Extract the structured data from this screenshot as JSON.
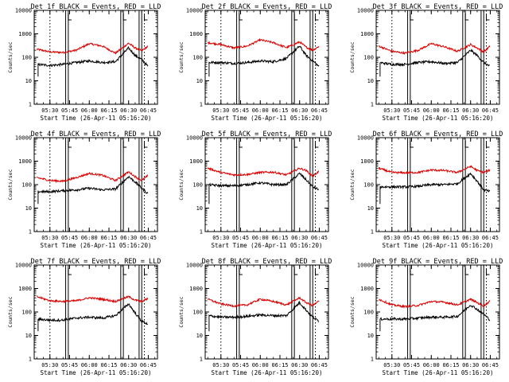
{
  "chart_data": {
    "type": "line",
    "layout": "3x3 grid",
    "y_scale": "log",
    "ylim": [
      1,
      10000
    ],
    "ytick_labels": [
      "1",
      "10",
      "100",
      "1000",
      "10000"
    ],
    "ylabel": "Counts/sec",
    "xlabel": "Start Time (26-Apr-11 05:16:20)",
    "xlim": [
      "05:18",
      "06:52"
    ],
    "xtick_labels": [
      "05:30",
      "05:45",
      "06:00",
      "06:15",
      "06:30",
      "06:45"
    ],
    "marker_lines": {
      "dotted": [
        "05:30",
        "06:42"
      ],
      "solid": [
        "05:42",
        "05:44",
        "06:24",
        "06:26",
        "06:38",
        "06:40"
      ]
    },
    "series_colors": {
      "events": "#000000",
      "lld": "#dd0000"
    },
    "x": [
      "05:20",
      "05:30",
      "05:40",
      "05:50",
      "06:00",
      "06:10",
      "06:20",
      "06:30",
      "06:35",
      "06:40",
      "06:45"
    ],
    "panels": [
      {
        "title": "Det 1f BLACK = Events, RED = LLD",
        "lld": [
          220,
          170,
          160,
          200,
          380,
          300,
          150,
          400,
          250,
          190,
          300
        ],
        "events": [
          50,
          45,
          50,
          60,
          70,
          60,
          65,
          250,
          120,
          80,
          40
        ]
      },
      {
        "title": "Det 2f BLACK = Events, RED = LLD",
        "lld": [
          420,
          350,
          250,
          300,
          550,
          420,
          260,
          450,
          270,
          200,
          300
        ],
        "events": [
          60,
          60,
          55,
          60,
          70,
          65,
          90,
          300,
          120,
          70,
          40
        ]
      },
      {
        "title": "Det 3f BLACK = Events, RED = LLD",
        "lld": [
          300,
          180,
          150,
          200,
          380,
          280,
          180,
          350,
          250,
          170,
          300
        ],
        "events": [
          60,
          50,
          50,
          60,
          65,
          55,
          60,
          200,
          120,
          60,
          40
        ]
      },
      {
        "title": "Det 4f BLACK = Events, RED = LLD",
        "lld": [
          200,
          150,
          140,
          200,
          300,
          250,
          150,
          350,
          220,
          150,
          250
        ],
        "events": [
          50,
          50,
          55,
          60,
          70,
          60,
          65,
          220,
          130,
          70,
          40
        ]
      },
      {
        "title": "Det 5f BLACK = Events, RED = LLD",
        "lld": [
          500,
          330,
          260,
          270,
          330,
          340,
          260,
          500,
          400,
          230,
          380
        ],
        "events": [
          100,
          90,
          90,
          100,
          120,
          100,
          100,
          300,
          160,
          80,
          60
        ]
      },
      {
        "title": "Det 6f BLACK = Events, RED = LLD",
        "lld": [
          500,
          330,
          320,
          330,
          420,
          400,
          330,
          600,
          400,
          330,
          420
        ],
        "events": [
          80,
          80,
          80,
          85,
          100,
          100,
          110,
          300,
          140,
          60,
          50
        ]
      },
      {
        "title": "Det 7f BLACK = Events, RED = LLD",
        "lld": [
          450,
          300,
          280,
          300,
          400,
          350,
          280,
          450,
          320,
          280,
          380
        ],
        "events": [
          50,
          45,
          45,
          55,
          60,
          55,
          70,
          220,
          90,
          40,
          30
        ]
      },
      {
        "title": "Det 8f BLACK = Events, RED = LLD",
        "lld": [
          350,
          220,
          180,
          200,
          350,
          280,
          200,
          400,
          250,
          190,
          300
        ],
        "events": [
          70,
          60,
          60,
          65,
          75,
          70,
          70,
          250,
          120,
          60,
          40
        ]
      },
      {
        "title": "Det 9f BLACK = Events, RED = LLD",
        "lld": [
          350,
          200,
          170,
          190,
          280,
          260,
          200,
          350,
          250,
          180,
          300
        ],
        "events": [
          50,
          50,
          50,
          55,
          60,
          60,
          65,
          200,
          130,
          80,
          45
        ]
      }
    ]
  }
}
